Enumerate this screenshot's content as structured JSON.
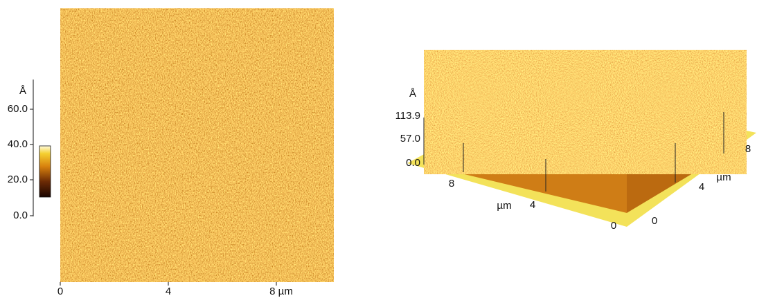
{
  "left_panel": {
    "z_unit": "Å",
    "z_ticks": [
      "60.0",
      "40.0",
      "20.0",
      "0.0"
    ],
    "x_ticks": [
      "0",
      "4",
      "8 µm"
    ]
  },
  "right_panel": {
    "z_unit": "Å",
    "z_ticks": [
      "113.9",
      "57.0",
      "0.0"
    ],
    "front_axis": {
      "ticks": [
        "8",
        "4",
        "0"
      ],
      "unit": "µm"
    },
    "side_axis": {
      "ticks": [
        "0",
        "4",
        "8"
      ],
      "unit": "µm"
    }
  }
}
